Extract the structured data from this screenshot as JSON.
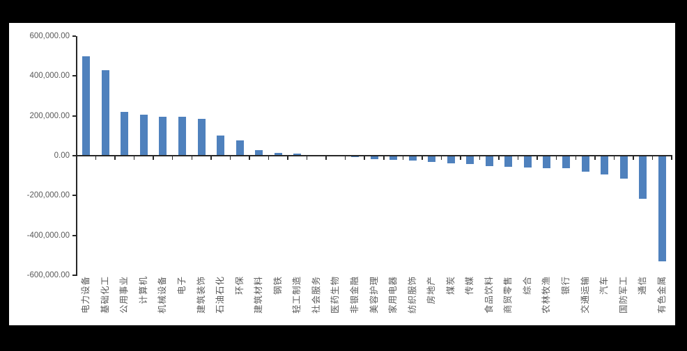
{
  "chart_data": {
    "type": "bar",
    "title": "",
    "xlabel": "",
    "ylabel": "",
    "grid": "off",
    "legend": "none",
    "bar_color": "#4f81bd",
    "axis_color": "#262626",
    "tick_label_color": "#595959",
    "background_color": "#ffffff",
    "page_background": "#000000",
    "ylim": [
      -600000,
      600000
    ],
    "ytick_step": 200000,
    "yticks": [
      {
        "value": 600000,
        "label": "600,000.00"
      },
      {
        "value": 400000,
        "label": "400,000.00"
      },
      {
        "value": 200000,
        "label": "200,000.00"
      },
      {
        "value": 0,
        "label": "0.00"
      },
      {
        "value": -200000,
        "label": "-200,000.00"
      },
      {
        "value": -400000,
        "label": "-400,000.00"
      },
      {
        "value": -600000,
        "label": "-600,000.00"
      }
    ],
    "categories": [
      "电力设备",
      "基础化工",
      "公用事业",
      "计算机",
      "机械设备",
      "电子",
      "建筑装饰",
      "石油石化",
      "环保",
      "建筑材料",
      "钢铁",
      "轻工制造",
      "社会服务",
      "医药生物",
      "非银金融",
      "美容护理",
      "家用电器",
      "纺织服饰",
      "房地产",
      "煤炭",
      "传媒",
      "食品饮料",
      "商贸零售",
      "综合",
      "农林牧渔",
      "银行",
      "交通运输",
      "汽车",
      "国防军工",
      "通信",
      "有色金属"
    ],
    "values": [
      497000,
      429000,
      218000,
      207000,
      195000,
      194000,
      183000,
      101000,
      75000,
      27000,
      13000,
      10000,
      -1500,
      -3500,
      -8000,
      -17000,
      -21000,
      -23000,
      -32000,
      -40000,
      -42000,
      -52000,
      -57000,
      -60000,
      -62000,
      -64000,
      -79000,
      -94000,
      -116000,
      -215000,
      -528000
    ]
  }
}
